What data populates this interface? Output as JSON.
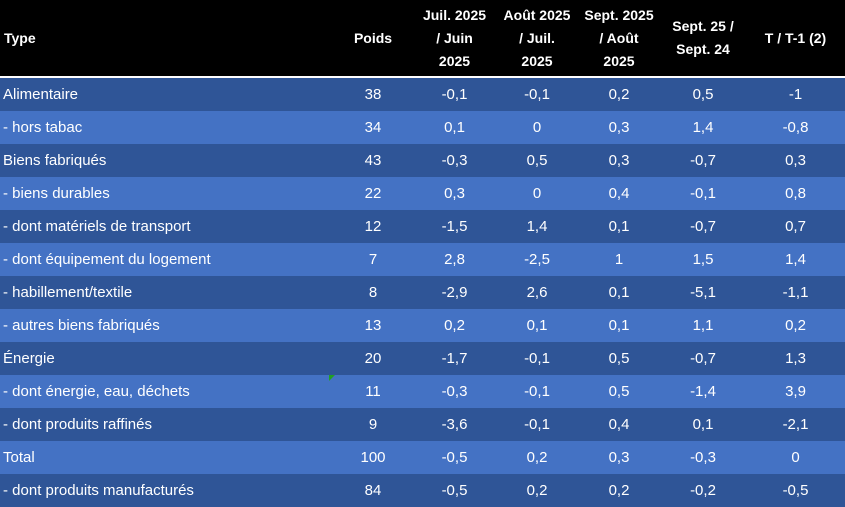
{
  "headers": [
    "Type",
    "Poids",
    "Juil. 2025 / Juin 2025",
    "Août 2025 / Juil. 2025",
    "Sept. 2025 / Août 2025",
    "Sept. 25 / Sept. 24",
    "T / T-1 (2)"
  ],
  "rows": [
    [
      "Alimentaire",
      "38",
      "-0,1",
      "-0,1",
      "0,2",
      "0,5",
      "-1"
    ],
    [
      "- hors tabac",
      "34",
      "0,1",
      "0",
      "0,3",
      "1,4",
      "-0,8"
    ],
    [
      "Biens fabriqués",
      "43",
      "-0,3",
      "0,5",
      "0,3",
      "-0,7",
      "0,3"
    ],
    [
      "- biens durables",
      "22",
      "0,3",
      "0",
      "0,4",
      "-0,1",
      "0,8"
    ],
    [
      "- dont matériels de transport",
      "12",
      "-1,5",
      "1,4",
      "0,1",
      "-0,7",
      "0,7"
    ],
    [
      "- dont équipement du logement",
      "7",
      "2,8",
      "-2,5",
      "1",
      "1,5",
      "1,4"
    ],
    [
      "- habillement/textile",
      "8",
      "-2,9",
      "2,6",
      "0,1",
      "-5,1",
      "-1,1"
    ],
    [
      "- autres biens fabriqués",
      "13",
      "0,2",
      "0,1",
      "0,1",
      "1,1",
      "0,2"
    ],
    [
      "Énergie",
      "20",
      "-1,7",
      "-0,1",
      "0,5",
      "-0,7",
      "1,3"
    ],
    [
      "- dont énergie, eau, déchets",
      "11",
      "-0,3",
      "-0,1",
      "0,5",
      "-1,4",
      "3,9"
    ],
    [
      "- dont produits raffinés",
      "9",
      "-3,6",
      "-0,1",
      "0,4",
      "0,1",
      "-2,1"
    ],
    [
      "Total",
      "100",
      "-0,5",
      "0,2",
      "0,3",
      "-0,3",
      "0"
    ],
    [
      "- dont produits manufacturés",
      "84",
      "-0,5",
      "0,2",
      "0,2",
      "-0,2",
      "-0,5"
    ]
  ],
  "colors": {
    "header_bg": "#000000",
    "row_dark": "#2f5597",
    "row_light": "#4472c4",
    "text": "#ffffff"
  }
}
